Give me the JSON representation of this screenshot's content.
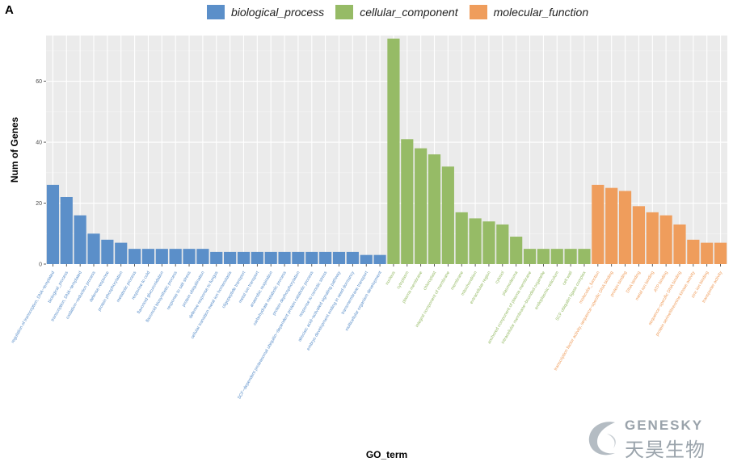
{
  "panel_label": "A",
  "legend": [
    {
      "name": "biological_process",
      "color": "#5b8fc9"
    },
    {
      "name": "cellular_component",
      "color": "#96bb66"
    },
    {
      "name": "molecular_function",
      "color": "#ef9d5c"
    }
  ],
  "watermark": {
    "en": "GENESKY",
    "cn": "天昊生物"
  },
  "chart_data": {
    "type": "bar",
    "title": "",
    "xlabel": "GO_term",
    "ylabel": "Num of Genes",
    "ylim": [
      0,
      75
    ],
    "yticks": [
      0,
      20,
      40,
      60
    ],
    "grid": true,
    "legend_position": "top",
    "series": [
      {
        "name": "biological_process",
        "color": "#5b8fc9",
        "categories": [
          "regulation of transcription, DNA−templated",
          "biological_process",
          "transcription, DNA−templated",
          "oxidation−reduction process",
          "defense response",
          "protein phosphorylation",
          "metabolic process",
          "response to cold",
          "flavonoid glucuronidation",
          "flavonoid biosynthetic process",
          "response to salt stress",
          "protein ubiquitination",
          "defense response to fungus",
          "cellular transition metal ion homeostasis",
          "oligopeptide transport",
          "metal ion transport",
          "anaerobic respiration",
          "carbohydrate metabolic process",
          "protein dephosphorylation",
          "SCF−dependent proteasomal ubiquitin−dependent protein catabolic process",
          "response to osmotic stress",
          "abscisic acid−activated signaling pathway",
          "embryo development ending in seed dormancy",
          "transmembrane transport",
          "multicellular organism development"
        ],
        "values": [
          26,
          22,
          16,
          10,
          8,
          7,
          5,
          5,
          5,
          5,
          5,
          5,
          4,
          4,
          4,
          4,
          4,
          4,
          4,
          4,
          4,
          4,
          4,
          3,
          3
        ]
      },
      {
        "name": "cellular_component",
        "color": "#96bb66",
        "categories": [
          "nucleus",
          "cytoplasm",
          "plasma membrane",
          "chloroplast",
          "integral component of membrane",
          "membrane",
          "mitochondrion",
          "extracellular region",
          "cytosol",
          "plasmodesma",
          "anchored component of plasma membrane",
          "intracellular membrane−bounded organelle",
          "endoplasmic reticulum",
          "cell wall",
          "SCF ubiquitin ligase complex"
        ],
        "values": [
          74,
          41,
          38,
          36,
          32,
          17,
          15,
          14,
          13,
          9,
          5,
          5,
          5,
          5,
          5
        ]
      },
      {
        "name": "molecular_function",
        "color": "#ef9d5c",
        "categories": [
          "molecular_function",
          "transcription factor activity, sequence−specific DNA binding",
          "protein binding",
          "DNA binding",
          "metal ion binding",
          "ATP binding",
          "sequence−specific DNA binding",
          "protein serine/threonine kinase activity",
          "zinc ion binding",
          "transporter activity"
        ],
        "values": [
          26,
          25,
          24,
          19,
          17,
          16,
          13,
          8,
          7,
          7
        ]
      }
    ]
  }
}
